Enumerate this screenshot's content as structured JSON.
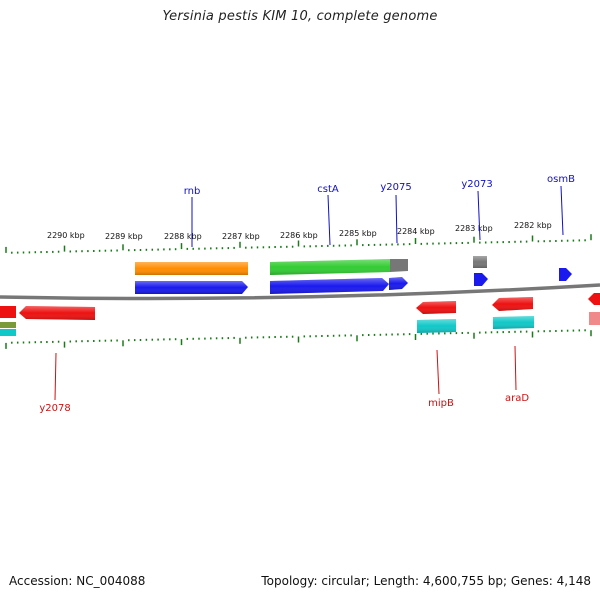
{
  "title": "Yersinia pestis KIM 10, complete genome",
  "footer": {
    "accession": "Accession: NC_004088",
    "summary": "Topology: circular; Length: 4,600,755 bp; Genes: 4,148"
  },
  "colors": {
    "backbone": "#777777",
    "tick": "#1a7a1a",
    "forward_label": "#1010c8",
    "reverse_label": "#d01010",
    "blue": "#1a1aee",
    "orange": "#ff8c00",
    "green": "#33cc33",
    "gray": "#777777",
    "red": "#ee1111",
    "cyan": "#11c8c8",
    "pink": "#f08a8a",
    "olive": "#7a9a3a"
  },
  "scale_labels": [
    "2290 kbp",
    "2289 kbp",
    "2288 kbp",
    "2287 kbp",
    "2286 kbp",
    "2285 kbp",
    "2284 kbp",
    "2283 kbp",
    "2282 kbp"
  ],
  "gene_labels": {
    "forward": [
      "rnb",
      "cstA",
      "y2075",
      "y2073",
      "osmB"
    ],
    "reverse": [
      "y2078",
      "mipB",
      "araD"
    ]
  }
}
